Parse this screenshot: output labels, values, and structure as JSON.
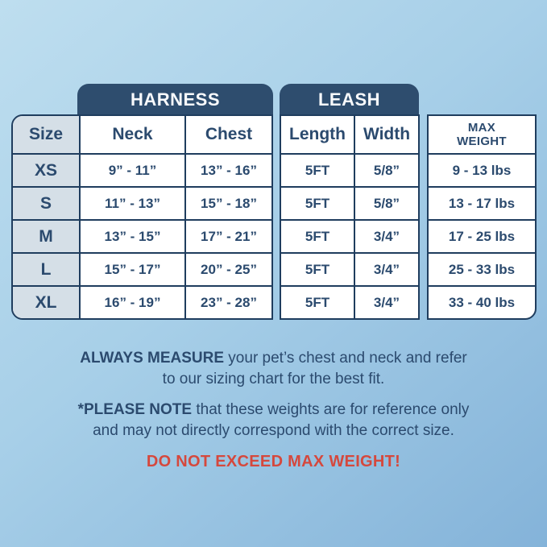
{
  "colors": {
    "background_top": "#bedeef",
    "background_bottom": "#84b3d9",
    "banner_navy": "#2e4d6e",
    "banner_text": "#f8fafc",
    "border_navy": "#1f3d5e",
    "navy": "#2b4a6e",
    "cell_bg": "#ffffff",
    "size_col_bg": "#d5dfe7",
    "warning_red": "#d5483d"
  },
  "chart_data": {
    "type": "table",
    "column_groups": [
      {
        "label": "HARNESS",
        "columns": [
          "Neck",
          "Chest"
        ]
      },
      {
        "label": "LEASH",
        "columns": [
          "Length",
          "Width"
        ]
      }
    ],
    "columns": [
      "Size",
      "Neck",
      "Chest",
      "Length",
      "Width",
      "MAX WEIGHT"
    ],
    "rows": [
      [
        "XS",
        "9” - 11”",
        "13” - 16”",
        "5FT",
        "5/8”",
        "9 - 13 lbs"
      ],
      [
        "S",
        "11” - 13”",
        "15” - 18”",
        "5FT",
        "5/8”",
        "13 - 17 lbs"
      ],
      [
        "M",
        "13” - 15”",
        "17” - 21”",
        "5FT",
        "3/4”",
        "17 - 25 lbs"
      ],
      [
        "L",
        "15” - 17”",
        "20” - 25”",
        "5FT",
        "3/4”",
        "25 - 33 lbs"
      ],
      [
        "XL",
        "16” - 19”",
        "23” - 28”",
        "5FT",
        "3/4”",
        "33 - 40 lbs"
      ]
    ]
  },
  "notes": {
    "measure_bold": "ALWAYS MEASURE",
    "measure_rest": " your pet’s chest and neck and refer\nto our sizing chart for the best fit.",
    "reference_bold": "*PLEASE NOTE",
    "reference_rest": " that these weights are for reference only\nand may not directly correspond with the correct size.",
    "warning": "DO NOT EXCEED MAX WEIGHT!"
  }
}
